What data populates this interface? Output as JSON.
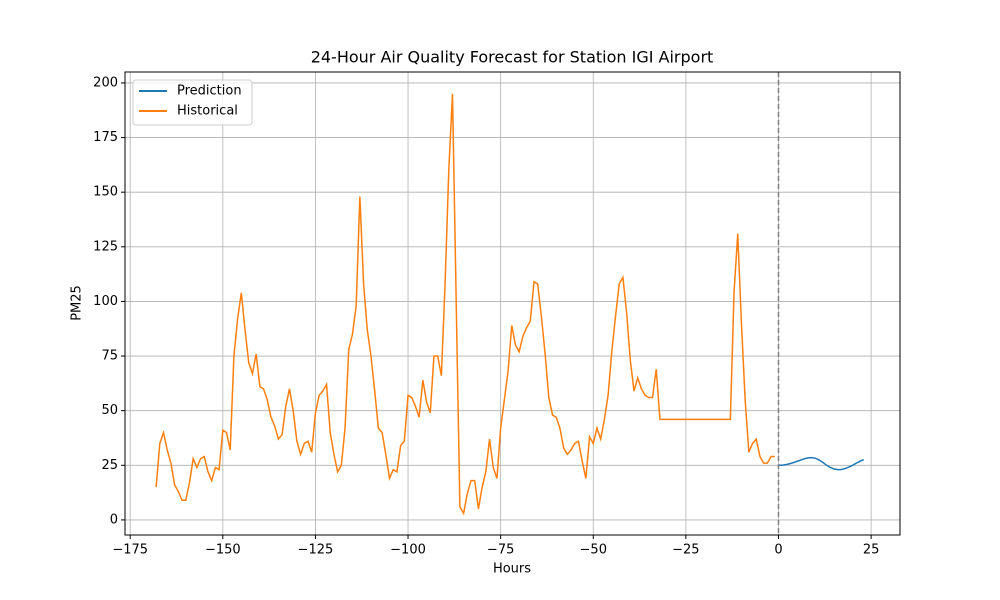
{
  "chart_data": {
    "type": "line",
    "title": "24-Hour Air Quality Forecast for Station IGI Airport",
    "xlabel": "Hours",
    "ylabel": "PM25",
    "xlim": [
      -176.4,
      32.8
    ],
    "ylim": [
      -6.9,
      205
    ],
    "xticks": [
      {
        "value": -175,
        "label": "−175"
      },
      {
        "value": -150,
        "label": "−150"
      },
      {
        "value": -125,
        "label": "−125"
      },
      {
        "value": -100,
        "label": "−100"
      },
      {
        "value": -75,
        "label": "−75"
      },
      {
        "value": -50,
        "label": "−50"
      },
      {
        "value": -25,
        "label": "−25"
      },
      0,
      25
    ],
    "yticks": [
      0,
      25,
      50,
      75,
      100,
      125,
      150,
      175,
      200
    ],
    "grid": true,
    "legend": "upper-left",
    "vline": 0,
    "series": [
      {
        "name": "Prediction",
        "color": "#1f77b4",
        "x": [
          0,
          1,
          2,
          3,
          4,
          5,
          6,
          7,
          8,
          9,
          10,
          11,
          12,
          13,
          14,
          15,
          16,
          17,
          18,
          19,
          20,
          21,
          22,
          23
        ],
        "values": [
          25,
          25,
          25.3,
          25.7,
          26.2,
          26.8,
          27.4,
          28,
          28.4,
          28.5,
          28.2,
          27.4,
          26.3,
          25,
          24,
          23.3,
          23,
          23.1,
          23.5,
          24.2,
          25,
          26,
          26.9,
          27.6
        ]
      },
      {
        "name": "Historical",
        "color": "#ff7f0e",
        "x": [
          -168,
          -167,
          -166,
          -165,
          -164,
          -163,
          -162,
          -161,
          -160,
          -159,
          -158,
          -157,
          -156,
          -155,
          -154,
          -153,
          -152,
          -151,
          -150,
          -149,
          -148,
          -147,
          -146,
          -145,
          -144,
          -143,
          -142,
          -141,
          -140,
          -139,
          -138,
          -137,
          -136,
          -135,
          -134,
          -133,
          -132,
          -131,
          -130,
          -129,
          -128,
          -127,
          -126,
          -125,
          -124,
          -123,
          -122,
          -121,
          -120,
          -119,
          -118,
          -117,
          -116,
          -115,
          -114,
          -113,
          -112,
          -111,
          -110,
          -109,
          -108,
          -107,
          -106,
          -105,
          -104,
          -103,
          -102,
          -101,
          -100,
          -99,
          -98,
          -97,
          -96,
          -95,
          -94,
          -93,
          -92,
          -91,
          -90,
          -89,
          -88,
          -87,
          -86,
          -85,
          -84,
          -83,
          -82,
          -81,
          -80,
          -79,
          -78,
          -77,
          -76,
          -75,
          -74,
          -73,
          -72,
          -71,
          -70,
          -69,
          -68,
          -67,
          -66,
          -65,
          -64,
          -63,
          -62,
          -61,
          -60,
          -59,
          -58,
          -57,
          -56,
          -55,
          -54,
          -53,
          -52,
          -51,
          -50,
          -49,
          -48,
          -47,
          -46,
          -45,
          -44,
          -43,
          -42,
          -41,
          -40,
          -39,
          -38,
          -37,
          -36,
          -35,
          -34,
          -33,
          -32,
          -31,
          -30,
          -29,
          -28,
          -27,
          -26,
          -25,
          -24,
          -23,
          -22,
          -21,
          -20,
          -19,
          -18,
          -17,
          -16,
          -15,
          -14,
          -13,
          -12,
          -11,
          -10,
          -9,
          -8,
          -7,
          -6,
          -5,
          -4,
          -3,
          -2,
          -1
        ],
        "values": [
          15,
          35,
          40,
          32,
          26,
          16,
          13,
          9,
          9,
          17,
          28,
          24,
          28,
          29,
          22,
          18,
          24,
          23,
          41,
          40,
          32,
          75,
          92,
          104,
          87,
          72,
          67,
          76,
          61,
          60,
          55,
          47,
          43,
          37,
          39,
          52,
          60,
          50,
          36,
          30,
          35,
          36,
          31,
          49,
          57,
          59,
          62,
          40,
          30,
          22,
          25,
          42,
          78,
          85,
          98,
          148,
          108,
          87,
          75,
          59,
          42,
          40,
          30,
          19,
          23,
          22,
          34,
          36,
          57,
          56,
          52,
          47,
          64,
          54,
          49,
          75,
          75,
          66,
          108,
          160,
          195,
          100,
          6,
          3,
          12,
          18,
          18,
          5,
          15,
          22,
          37,
          24,
          19,
          42,
          55,
          68,
          89,
          80,
          77,
          84,
          88,
          91,
          109,
          108,
          93,
          76,
          56,
          48,
          47,
          42,
          33,
          30,
          32,
          35,
          36,
          27,
          19,
          38,
          35,
          42,
          37,
          46,
          57,
          77,
          93,
          108,
          111,
          95,
          73,
          59,
          65,
          60,
          57,
          56,
          56,
          69,
          46,
          46,
          46,
          46,
          46,
          46,
          46,
          46,
          46,
          46,
          46,
          46,
          46,
          46,
          46,
          46,
          46,
          46,
          46,
          46,
          104,
          131,
          90,
          55,
          31,
          35,
          37,
          29,
          26,
          26,
          29,
          29
        ]
      }
    ]
  }
}
